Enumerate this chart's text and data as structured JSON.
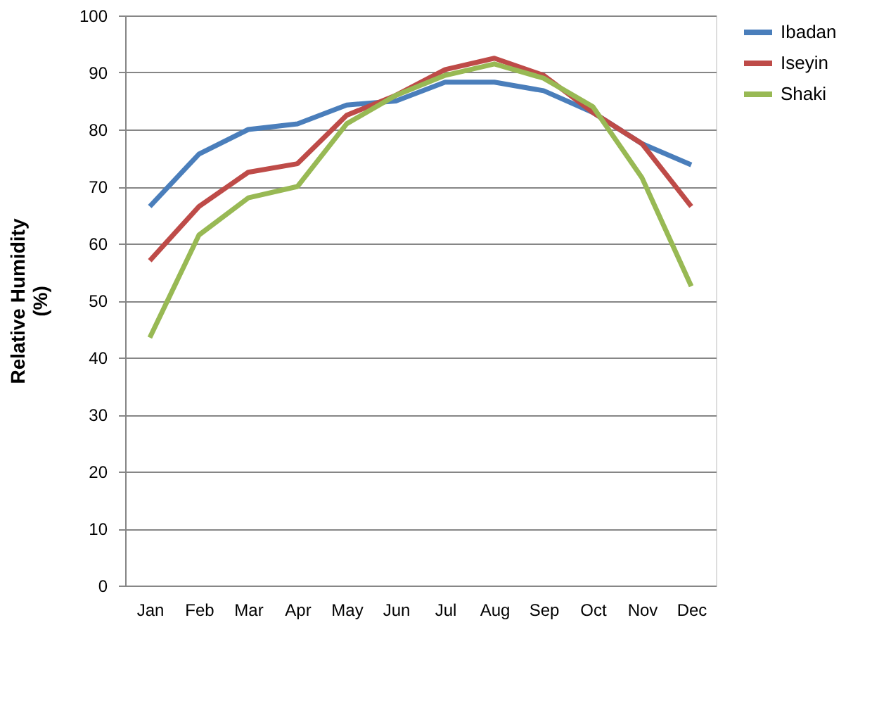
{
  "chart_data": {
    "type": "line",
    "ylabel": "Relative Humidity\n(%)",
    "categories": [
      "Jan",
      "Feb",
      "Mar",
      "Apr",
      "May",
      "Jun",
      "Jul",
      "Aug",
      "Sep",
      "Oct",
      "Nov",
      "Dec"
    ],
    "series": [
      {
        "name": "Ibadan",
        "color": "#4a7ebb",
        "values": [
          66.5,
          75.7,
          80,
          81,
          84.3,
          85,
          88.3,
          88.3,
          86.8,
          83,
          77.5,
          73.8
        ]
      },
      {
        "name": "Iseyin",
        "color": "#be4b48",
        "values": [
          57,
          66.5,
          72.5,
          74,
          82.5,
          86,
          90.5,
          92.5,
          89.5,
          83,
          77.5,
          66.5
        ]
      },
      {
        "name": "Shaki",
        "color": "#98b954",
        "values": [
          43.5,
          61.5,
          68,
          70,
          81,
          86,
          89.5,
          91.5,
          89,
          84,
          71.5,
          52.5
        ]
      }
    ],
    "ylim": [
      0,
      100
    ],
    "yticks": [
      0,
      10,
      20,
      30,
      40,
      50,
      60,
      70,
      80,
      90,
      100
    ],
    "grid": "y",
    "legend": "right",
    "marker": "none",
    "line_style": "solid"
  }
}
